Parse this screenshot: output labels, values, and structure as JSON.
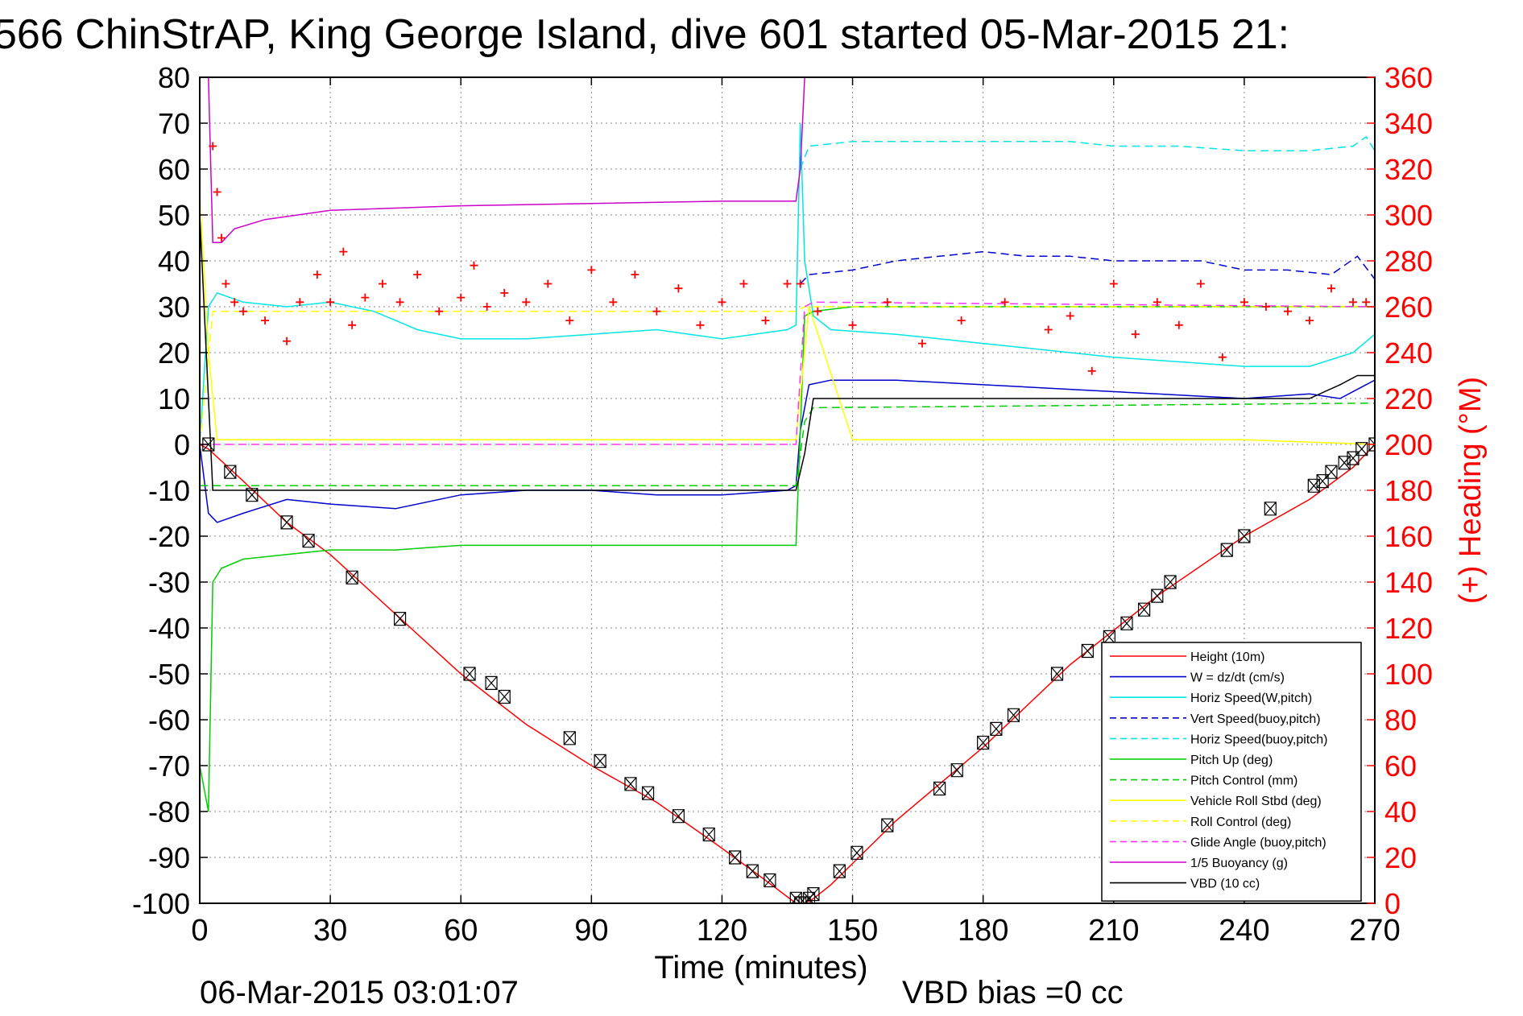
{
  "chart_data": {
    "type": "line",
    "title": "566 ChinStrAP, King George Island, dive 601 started 05-Mar-2015 21:",
    "xlabel": "Time (minutes)",
    "ylabel": "",
    "y2label": "(+) Heading (°M)",
    "xlim": [
      0,
      270
    ],
    "ylim": [
      -100,
      80
    ],
    "y2lim": [
      0,
      360
    ],
    "xticks": [
      "0",
      "30",
      "60",
      "90",
      "120",
      "150",
      "180",
      "210",
      "240",
      "270"
    ],
    "yticks": [
      "80",
      "70",
      "60",
      "50",
      "40",
      "30",
      "20",
      "10",
      "0",
      "-10",
      "-20",
      "-30",
      "-40",
      "-50",
      "-60",
      "-70",
      "-80",
      "-90",
      "-100"
    ],
    "y2ticks": [
      "360",
      "340",
      "320",
      "300",
      "280",
      "260",
      "240",
      "220",
      "200",
      "180",
      "160",
      "140",
      "120",
      "100",
      "80",
      "60",
      "40",
      "20",
      "0"
    ],
    "grid": true,
    "legend_position": "bottom-right",
    "footer_date": "06-Mar-2015 03:01:07",
    "footer_bias": "VBD bias =0 cc",
    "colors": {
      "axis_right": "#ff0000",
      "height": "#ff0000",
      "w": "#0000cc",
      "horiz_speed": "#00e6e6",
      "pitch": "#00cc00",
      "roll": "#ffff00",
      "glide": "#ff33ff",
      "buoyancy": "#cc00cc",
      "vbd": "#000000",
      "heading": "#ff0000"
    },
    "series": [
      {
        "name": "Height (10m)",
        "color": "#ff0000",
        "dash": false,
        "x": [
          0,
          2,
          10,
          20,
          30,
          45,
          60,
          75,
          90,
          105,
          120,
          130,
          137,
          139,
          141,
          145,
          160,
          180,
          200,
          220,
          240,
          255,
          265,
          270
        ],
        "y": [
          0,
          -1,
          -8,
          -17,
          -24,
          -37,
          -50,
          -61,
          -70,
          -78,
          -88,
          -95,
          -100,
          -100,
          -99,
          -96,
          -82,
          -66,
          -48,
          -33,
          -20,
          -12,
          -5,
          0
        ]
      },
      {
        "name": "W = dz/dt (cm/s)",
        "color": "#0000cc",
        "dash": false,
        "x": [
          0,
          2,
          4,
          10,
          20,
          30,
          45,
          60,
          75,
          90,
          105,
          120,
          135,
          137,
          138,
          140,
          145,
          160,
          180,
          200,
          220,
          240,
          255,
          262,
          266,
          270
        ],
        "y": [
          0,
          -15,
          -17,
          -15,
          -12,
          -13,
          -14,
          -11,
          -10,
          -10,
          -11,
          -11,
          -10,
          -9,
          3,
          13,
          14,
          14,
          13,
          12,
          11,
          10,
          11,
          10,
          12,
          14
        ]
      },
      {
        "name": "Horiz Speed(W,pitch)",
        "color": "#00e6e6",
        "dash": false,
        "x": [
          0,
          2,
          4,
          10,
          20,
          30,
          40,
          50,
          60,
          75,
          90,
          105,
          120,
          135,
          137,
          138,
          139,
          141,
          145,
          160,
          180,
          200,
          210,
          225,
          240,
          255,
          265,
          270
        ],
        "y": [
          0,
          30,
          33,
          31,
          30,
          31,
          29,
          25,
          23,
          23,
          24,
          25,
          23,
          25,
          26,
          70,
          40,
          28,
          25,
          24,
          22,
          20,
          19,
          18,
          17,
          17,
          20,
          24
        ]
      },
      {
        "name": "Vert Speed(buoy,pitch)",
        "color": "#0000cc",
        "dash": true,
        "x": [
          138,
          140,
          150,
          160,
          170,
          180,
          190,
          200,
          210,
          220,
          230,
          240,
          250,
          260,
          266,
          270
        ],
        "y": [
          35,
          37,
          38,
          40,
          41,
          42,
          41,
          41,
          40,
          40,
          40,
          38,
          38,
          37,
          41,
          36
        ]
      },
      {
        "name": "Horiz Speed(buoy,pitch)",
        "color": "#00e6e6",
        "dash": true,
        "x": [
          138,
          140,
          150,
          160,
          180,
          200,
          210,
          225,
          240,
          255,
          265,
          268,
          270
        ],
        "y": [
          60,
          65,
          66,
          66,
          66,
          66,
          65,
          65,
          64,
          64,
          65,
          67,
          64
        ]
      },
      {
        "name": "Pitch Up (deg)",
        "color": "#00cc00",
        "dash": false,
        "x": [
          0,
          2,
          3,
          5,
          10,
          20,
          30,
          45,
          60,
          75,
          90,
          105,
          120,
          137,
          139,
          141,
          150,
          180,
          210,
          240,
          270
        ],
        "y": [
          -70,
          -80,
          -30,
          -27,
          -25,
          -24,
          -23,
          -23,
          -22,
          -22,
          -22,
          -22,
          -22,
          -22,
          28,
          29,
          30,
          30,
          30,
          30,
          30
        ]
      },
      {
        "name": "Pitch Control (mm)",
        "color": "#00cc00",
        "dash": true,
        "x": [
          0,
          3,
          10,
          137,
          139,
          141,
          270
        ],
        "y": [
          -9,
          -9,
          -9,
          -9,
          5,
          8,
          9
        ]
      },
      {
        "name": "Vehicle Roll Stbd (deg)",
        "color": "#ffff00",
        "dash": false,
        "x": [
          0,
          2,
          4,
          10,
          30,
          60,
          90,
          120,
          137,
          140,
          150,
          180,
          210,
          240,
          270
        ],
        "y": [
          55,
          20,
          1,
          1,
          1,
          1,
          1,
          1,
          1,
          30,
          1,
          1,
          1,
          1,
          0
        ]
      },
      {
        "name": "Roll Control (deg)",
        "color": "#ffff00",
        "dash": true,
        "x": [
          0,
          3,
          137,
          139,
          270
        ],
        "y": [
          0,
          29,
          29,
          30,
          30
        ]
      },
      {
        "name": "Glide Angle (buoy,pitch)",
        "color": "#ff33ff",
        "dash": true,
        "x": [
          0,
          137,
          139,
          141,
          270
        ],
        "y": [
          0,
          0,
          30,
          31,
          30
        ]
      },
      {
        "name": "1/5 Buoyancy (g)",
        "color": "#cc00cc",
        "dash": false,
        "x": [
          0,
          2,
          3,
          5,
          8,
          15,
          30,
          60,
          90,
          120,
          137,
          138,
          139,
          140
        ],
        "y": [
          80,
          80,
          44,
          44,
          47,
          49,
          51,
          52,
          52.5,
          53,
          53,
          60,
          80,
          80
        ]
      },
      {
        "name": "VBD (10 cc)",
        "color": "#000000",
        "dash": false,
        "x": [
          0,
          3,
          10,
          137,
          139,
          141,
          150,
          180,
          210,
          240,
          255,
          262,
          266,
          270
        ],
        "y": [
          50,
          -10,
          -10,
          -10,
          -2,
          10,
          10,
          10,
          10,
          10,
          10,
          13,
          15,
          15
        ]
      }
    ],
    "heading_points": {
      "name": "Heading",
      "axis": "right",
      "x": [
        3,
        4,
        5,
        6,
        8,
        10,
        15,
        20,
        23,
        27,
        30,
        33,
        35,
        38,
        42,
        46,
        50,
        55,
        60,
        63,
        66,
        70,
        75,
        80,
        85,
        90,
        95,
        100,
        105,
        110,
        115,
        120,
        125,
        130,
        135,
        138,
        142,
        150,
        158,
        166,
        175,
        185,
        195,
        200,
        205,
        210,
        215,
        220,
        225,
        230,
        235,
        240,
        245,
        250,
        255,
        260,
        265,
        268
      ],
      "y": [
        330,
        310,
        290,
        270,
        262,
        258,
        254,
        245,
        262,
        274,
        262,
        284,
        252,
        264,
        270,
        262,
        274,
        258,
        264,
        278,
        260,
        266,
        262,
        270,
        254,
        276,
        262,
        274,
        258,
        268,
        252,
        262,
        270,
        254,
        270,
        270,
        258,
        252,
        262,
        244,
        254,
        262,
        250,
        256,
        232,
        270,
        248,
        262,
        252,
        270,
        238,
        262,
        260,
        258,
        254,
        268,
        262,
        262
      ]
    },
    "markers_triangle": {
      "x": [
        2,
        7,
        12,
        20,
        25,
        35,
        46,
        62,
        67,
        70,
        85,
        92,
        99,
        103,
        110,
        117,
        123,
        127,
        131,
        137,
        138,
        139,
        140,
        141,
        147,
        151,
        158,
        170,
        174,
        180,
        183,
        187,
        197,
        204,
        209,
        213,
        217,
        220,
        223,
        236,
        240,
        246,
        256,
        258,
        260,
        263,
        265,
        267,
        270
      ],
      "y": [
        0,
        -6,
        -11,
        -17,
        -21,
        -29,
        -38,
        -50,
        -52,
        -55,
        -64,
        -69,
        -74,
        -76,
        -81,
        -85,
        -90,
        -93,
        -95,
        -99,
        -100,
        -100,
        -99,
        -98,
        -93,
        -89,
        -83,
        -75,
        -71,
        -65,
        -62,
        -59,
        -50,
        -45,
        -42,
        -39,
        -36,
        -33,
        -30,
        -23,
        -20,
        -14,
        -9,
        -8,
        -6,
        -4,
        -3,
        -1,
        0
      ]
    }
  }
}
